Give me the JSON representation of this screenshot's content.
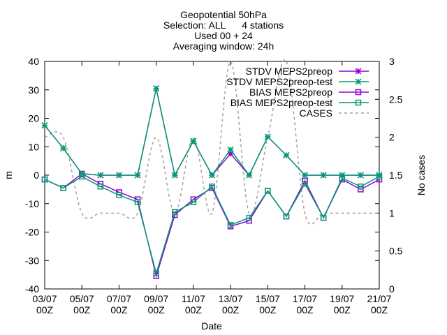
{
  "chart_data": {
    "type": "line",
    "title_lines": [
      "Geopotential 50hPa",
      "Selection: ALL      4 stations",
      "Used 00 + 24",
      "Averaging window: 24h"
    ],
    "xlabel": "Date",
    "ylabel": "m",
    "y2label": "No cases",
    "ylim": [
      -40,
      40
    ],
    "y2lim": [
      0,
      3
    ],
    "yticks": [
      -40,
      -30,
      -20,
      -10,
      0,
      10,
      20,
      30,
      40
    ],
    "y2ticks": [
      0,
      0.5,
      1,
      1.5,
      2,
      2.5,
      3
    ],
    "grid": false,
    "legend_position": "top-right",
    "x_tick_labels": [
      {
        "date": "03/07",
        "hour": "00Z"
      },
      {
        "date": "05/07",
        "hour": "00Z"
      },
      {
        "date": "07/07",
        "hour": "00Z"
      },
      {
        "date": "09/07",
        "hour": "00Z"
      },
      {
        "date": "11/07",
        "hour": "00Z"
      },
      {
        "date": "13/07",
        "hour": "00Z"
      },
      {
        "date": "15/07",
        "hour": "00Z"
      },
      {
        "date": "17/07",
        "hour": "00Z"
      },
      {
        "date": "19/07",
        "hour": "00Z"
      },
      {
        "date": "21/07",
        "hour": "00Z"
      }
    ],
    "x": [
      "03/07",
      "04/07",
      "05/07",
      "06/07",
      "07/07",
      "08/07",
      "09/07",
      "10/07",
      "11/07",
      "12/07",
      "13/07",
      "14/07",
      "15/07",
      "16/07",
      "17/07",
      "18/07",
      "19/07",
      "20/07",
      "21/07"
    ],
    "series": [
      {
        "name": "STDV MEPS2preop",
        "color": "#9400d3",
        "marker": "star",
        "dashed": false,
        "axis": "y",
        "values": [
          17.5,
          9.5,
          0.5,
          0,
          0,
          0,
          30.5,
          0,
          12,
          0,
          7.5,
          0,
          13.5,
          7,
          0,
          0,
          0,
          0,
          0
        ]
      },
      {
        "name": "STDV MEPS2preop-test",
        "color": "#009e73",
        "marker": "star",
        "dashed": false,
        "axis": "y",
        "values": [
          17.5,
          9.5,
          0.5,
          0,
          0,
          0,
          30.5,
          0,
          12,
          0,
          9,
          0,
          13.5,
          7,
          0,
          0,
          0,
          0,
          0
        ]
      },
      {
        "name": "BIAS MEPS2preop",
        "color": "#9400d3",
        "marker": "square",
        "dashed": false,
        "axis": "y",
        "values": [
          -1.5,
          -4.5,
          0.5,
          -3,
          -6,
          -8.5,
          -35.5,
          -14,
          -8.5,
          -4.5,
          -18,
          -16,
          -5.5,
          -14.5,
          -2,
          -15,
          -1.5,
          -5,
          -1.5
        ]
      },
      {
        "name": "BIAS MEPS2preop-test",
        "color": "#009e73",
        "marker": "square",
        "dashed": false,
        "axis": "y",
        "values": [
          -1.5,
          -4.5,
          -0.5,
          -4,
          -7,
          -9.5,
          -34.5,
          -13,
          -9.5,
          -4,
          -17.5,
          -15,
          -5.5,
          -14.5,
          -3,
          -15,
          -1,
          -4,
          -0.5
        ]
      },
      {
        "name": "CASES",
        "color": "#a0a0a0",
        "marker": "none",
        "dashed": true,
        "axis": "y2",
        "values": [
          2,
          2,
          1,
          1,
          1,
          1,
          2,
          1,
          2,
          1,
          3,
          1,
          2,
          3,
          1,
          1,
          1,
          1,
          1
        ]
      }
    ]
  }
}
